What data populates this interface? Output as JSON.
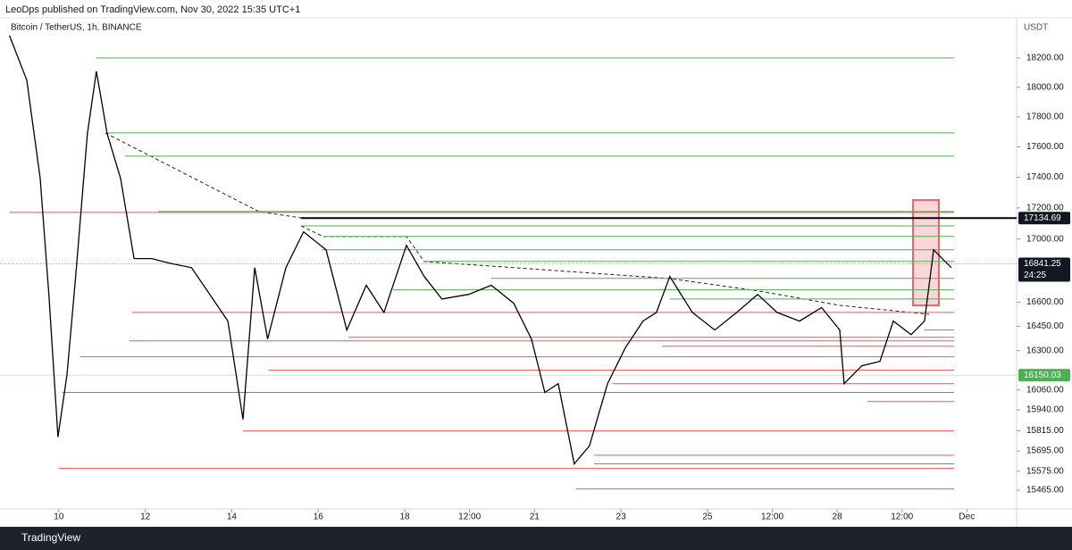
{
  "header": {
    "publisher": "LeoDps published on TradingView.com, Nov 30, 2022 15:35 UTC+1"
  },
  "footer": {
    "brand": "TradingView"
  },
  "chart_data": {
    "type": "line",
    "title": "Bitcoin / TetherUS, 1h, BINANCE",
    "y_label": "USDT",
    "log_scale": true,
    "grid": false,
    "color": "#000000",
    "x": [
      8.86,
      9.26,
      9.57,
      9.77,
      9.98,
      10.19,
      10.39,
      10.66,
      10.87,
      11.12,
      11.43,
      11.74,
      12.15,
      12.56,
      13.07,
      13.49,
      13.91,
      14.26,
      14.53,
      14.83,
      15.25,
      15.66,
      16.18,
      16.66,
      17.11,
      17.52,
      18.04,
      18.45,
      18.86,
      19.48,
      20.0,
      20.52,
      20.93,
      21.24,
      21.55,
      21.92,
      22.27,
      22.69,
      23.1,
      23.51,
      23.82,
      24.13,
      24.65,
      25.17,
      25.68,
      26.16,
      26.61,
      27.13,
      27.64,
      28.06,
      28.16,
      28.57,
      28.99,
      29.3,
      29.71,
      30.02,
      30.23,
      30.43,
      30.64
    ],
    "values": [
      18354,
      18048,
      17392,
      16649,
      15778,
      16153,
      16761,
      17687,
      18109,
      17687,
      17392,
      16875,
      16875,
      16846,
      16817,
      16649,
      16482,
      15883,
      16817,
      16371,
      16817,
      17046,
      16931,
      16427,
      16706,
      16536,
      16959,
      16761,
      16620,
      16649,
      16706,
      16593,
      16371,
      16045,
      16098,
      15619,
      15725,
      16098,
      16316,
      16482,
      16536,
      16761,
      16536,
      16427,
      16536,
      16649,
      16536,
      16482,
      16566,
      16427,
      16098,
      16207,
      16234,
      16482,
      16398,
      16482,
      16931,
      16875,
      16817
    ],
    "xlim": [
      8.64,
      32.15
    ],
    "ylim": [
      15356,
      18477
    ],
    "xticks": [
      10,
      12,
      14,
      16,
      18,
      {
        "value": 19.5,
        "label": "12:00"
      },
      21,
      23,
      25,
      {
        "value": 26.5,
        "label": "12:00"
      },
      28,
      {
        "value": 29.5,
        "label": "12:00"
      },
      {
        "value": 31,
        "label": "Dec"
      }
    ],
    "yticks": [
      {
        "value": 18200,
        "label": "18200.00"
      },
      {
        "value": 18000,
        "label": "18000.00"
      },
      {
        "value": 17800,
        "label": "17800.00"
      },
      {
        "value": 17600,
        "label": "17600.00"
      },
      {
        "value": 17400,
        "label": "17400.00"
      },
      {
        "value": 17200,
        "label": "17200.00"
      },
      {
        "value": 17000,
        "label": "17000.00"
      },
      {
        "value": 16600,
        "label": "16600.00"
      },
      {
        "value": 16450,
        "label": "16450.00"
      },
      {
        "value": 16300,
        "label": "16300.00"
      },
      {
        "value": 16060,
        "label": "16060.00"
      },
      {
        "value": 15940,
        "label": "15940.00"
      },
      {
        "value": 15815,
        "label": "15815.00"
      },
      {
        "value": 15695,
        "label": "15695.00"
      },
      {
        "value": 15575,
        "label": "15575.00"
      },
      {
        "value": 15465,
        "label": "15465.00"
      }
    ],
    "green_levels": {
      "color": "#4caf50",
      "values": [
        18200,
        17693,
        17539,
        17177,
        17084,
        17017,
        16931,
        16857,
        16750,
        16677,
        16620
      ],
      "starts": [
        10.87,
        11.07,
        11.53,
        12.3,
        15.6,
        16.12,
        16.08,
        18.45,
        20.0,
        17.73,
        24.13
      ]
    },
    "red_levels": {
      "color": "#f05350",
      "values": [
        17171,
        16536,
        16360,
        16262,
        16180,
        16045,
        15814,
        15592,
        15472,
        16382,
        16098,
        15990,
        15619,
        15670,
        16427,
        16327
      ],
      "starts": [
        8.86,
        11.7,
        11.63,
        10.5,
        14.85,
        10.08,
        14.26,
        10.0,
        21.96,
        16.7,
        22.8,
        28.7,
        22.38,
        22.38,
        30.02,
        23.95
      ]
    },
    "key_level": {
      "value": 17134.69,
      "start": 15.6
    },
    "last_price": {
      "value": 16841.25,
      "countdown": "24:25"
    },
    "marker_price": 16150.03
  }
}
